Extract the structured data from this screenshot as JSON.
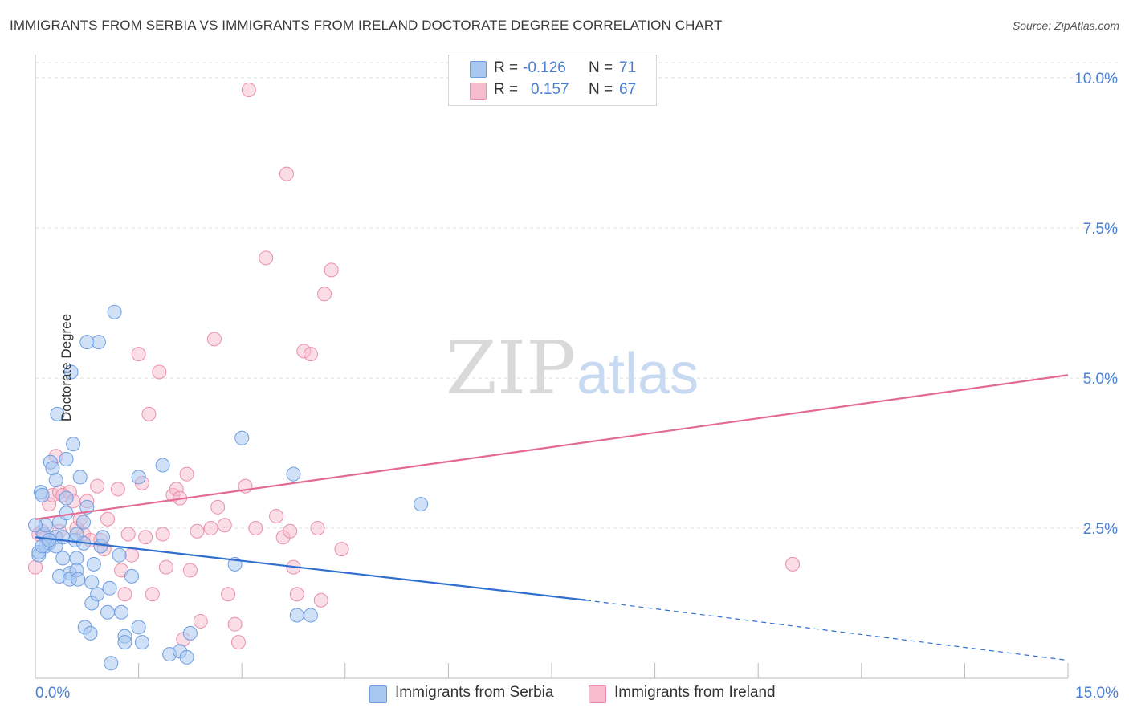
{
  "header": {
    "title": "IMMIGRANTS FROM SERBIA VS IMMIGRANTS FROM IRELAND DOCTORATE DEGREE CORRELATION CHART",
    "source": "Source: ZipAtlas.com"
  },
  "legend": {
    "r_label": "R =",
    "n_label": "N =",
    "serbia": {
      "r": "-0.126",
      "n": "71"
    },
    "ireland": {
      "r": "0.157",
      "n": "67"
    }
  },
  "watermark": {
    "part1": "ZIP",
    "part2": "atlas"
  },
  "colors": {
    "serbia_fill": "#a9c8f0",
    "serbia_stroke": "#6d9de0",
    "serbia_line": "#2f6fce",
    "ireland_fill": "#f7bccd",
    "ireland_stroke": "#ea8fab",
    "ireland_line": "#e26a94",
    "tick_label": "#4a7fd4",
    "grid": "#dcdcdc"
  },
  "chart_data": {
    "type": "scatter",
    "title": "IMMIGRANTS FROM SERBIA VS IMMIGRANTS FROM IRELAND DOCTORATE DEGREE CORRELATION CHART",
    "xlabel": "",
    "ylabel": "Doctorate Degree",
    "xlim": [
      0,
      15
    ],
    "ylim": [
      0,
      10.5
    ],
    "x_tick_labels": [
      "0.0%",
      "15.0%"
    ],
    "y_ticks": [
      2.5,
      5.0,
      7.5,
      10.0
    ],
    "y_tick_labels": [
      "2.5%",
      "5.0%",
      "7.5%",
      "10.0%"
    ],
    "grid": true,
    "legend_position": "bottom",
    "series": [
      {
        "name": "Immigrants from Serbia",
        "r": -0.126,
        "n": 71,
        "trend": {
          "x0": 0,
          "y0": 2.35,
          "x1": 8.0,
          "y1": 1.3,
          "dashed_to_x": 15,
          "dashed_to_y": 0.3
        },
        "points": [
          [
            0.05,
            2.05
          ],
          [
            0.05,
            2.1
          ],
          [
            0.08,
            3.1
          ],
          [
            0.1,
            3.05
          ],
          [
            0.12,
            2.4
          ],
          [
            0.15,
            2.55
          ],
          [
            0.15,
            2.2
          ],
          [
            0.2,
            2.25
          ],
          [
            0.2,
            2.3
          ],
          [
            0.22,
            3.6
          ],
          [
            0.25,
            3.5
          ],
          [
            0.3,
            2.35
          ],
          [
            0.3,
            2.2
          ],
          [
            0.32,
            4.4
          ],
          [
            0.35,
            2.6
          ],
          [
            0.35,
            1.7
          ],
          [
            0.4,
            2.0
          ],
          [
            0.4,
            2.35
          ],
          [
            0.45,
            2.75
          ],
          [
            0.45,
            3.0
          ],
          [
            0.45,
            3.65
          ],
          [
            0.5,
            1.75
          ],
          [
            0.5,
            1.65
          ],
          [
            0.52,
            5.1
          ],
          [
            0.55,
            3.9
          ],
          [
            0.58,
            2.3
          ],
          [
            0.6,
            2.0
          ],
          [
            0.6,
            1.8
          ],
          [
            0.62,
            1.65
          ],
          [
            0.65,
            3.35
          ],
          [
            0.7,
            2.25
          ],
          [
            0.7,
            2.6
          ],
          [
            0.72,
            0.85
          ],
          [
            0.75,
            2.85
          ],
          [
            0.75,
            5.6
          ],
          [
            0.8,
            0.75
          ],
          [
            0.82,
            1.6
          ],
          [
            0.82,
            1.25
          ],
          [
            0.85,
            1.9
          ],
          [
            0.9,
            1.4
          ],
          [
            0.92,
            5.6
          ],
          [
            0.95,
            2.2
          ],
          [
            0.98,
            2.35
          ],
          [
            1.05,
            1.1
          ],
          [
            1.08,
            1.5
          ],
          [
            1.1,
            0.25
          ],
          [
            1.15,
            6.1
          ],
          [
            1.22,
            2.05
          ],
          [
            1.25,
            1.1
          ],
          [
            1.3,
            0.7
          ],
          [
            1.3,
            0.6
          ],
          [
            1.4,
            1.7
          ],
          [
            1.5,
            3.35
          ],
          [
            1.5,
            0.85
          ],
          [
            1.55,
            0.6
          ],
          [
            1.85,
            3.55
          ],
          [
            1.95,
            0.4
          ],
          [
            2.1,
            0.45
          ],
          [
            2.2,
            0.35
          ],
          [
            2.25,
            0.75
          ],
          [
            2.9,
            1.9
          ],
          [
            3.0,
            4.0
          ],
          [
            3.75,
            3.4
          ],
          [
            3.8,
            1.05
          ],
          [
            4.0,
            1.05
          ],
          [
            5.6,
            2.9
          ],
          [
            0.0,
            2.55
          ],
          [
            0.1,
            2.2
          ],
          [
            0.2,
            2.3
          ],
          [
            0.3,
            3.3
          ],
          [
            0.6,
            2.4
          ]
        ]
      },
      {
        "name": "Immigrants from Ireland",
        "r": 0.157,
        "n": 67,
        "trend": {
          "x0": 0,
          "y0": 2.65,
          "x1": 15,
          "y1": 5.05
        },
        "points": [
          [
            0.0,
            1.85
          ],
          [
            0.05,
            2.4
          ],
          [
            0.1,
            2.45
          ],
          [
            0.15,
            2.35
          ],
          [
            0.2,
            2.9
          ],
          [
            0.25,
            3.05
          ],
          [
            0.3,
            3.7
          ],
          [
            0.35,
            3.1
          ],
          [
            0.4,
            3.05
          ],
          [
            0.5,
            3.1
          ],
          [
            0.55,
            2.95
          ],
          [
            0.6,
            2.5
          ],
          [
            0.65,
            2.65
          ],
          [
            0.7,
            2.4
          ],
          [
            0.75,
            2.95
          ],
          [
            0.8,
            2.3
          ],
          [
            0.9,
            3.2
          ],
          [
            0.95,
            2.3
          ],
          [
            1.0,
            2.15
          ],
          [
            1.05,
            2.65
          ],
          [
            1.2,
            3.15
          ],
          [
            1.25,
            1.8
          ],
          [
            1.3,
            1.4
          ],
          [
            1.35,
            2.4
          ],
          [
            1.4,
            2.05
          ],
          [
            1.5,
            5.4
          ],
          [
            1.55,
            3.25
          ],
          [
            1.6,
            2.35
          ],
          [
            1.65,
            4.4
          ],
          [
            1.7,
            1.4
          ],
          [
            1.8,
            5.1
          ],
          [
            1.85,
            2.4
          ],
          [
            1.9,
            1.85
          ],
          [
            2.0,
            3.05
          ],
          [
            2.05,
            3.15
          ],
          [
            2.1,
            3.0
          ],
          [
            2.15,
            0.65
          ],
          [
            2.2,
            3.4
          ],
          [
            2.25,
            1.8
          ],
          [
            2.35,
            2.45
          ],
          [
            2.4,
            0.95
          ],
          [
            2.55,
            2.5
          ],
          [
            2.6,
            5.65
          ],
          [
            2.65,
            2.85
          ],
          [
            2.75,
            2.55
          ],
          [
            2.8,
            1.4
          ],
          [
            2.9,
            0.9
          ],
          [
            2.95,
            0.6
          ],
          [
            3.05,
            3.2
          ],
          [
            3.1,
            9.8
          ],
          [
            3.2,
            2.5
          ],
          [
            3.35,
            7.0
          ],
          [
            3.5,
            2.7
          ],
          [
            3.6,
            2.35
          ],
          [
            3.65,
            8.4
          ],
          [
            3.7,
            2.45
          ],
          [
            3.75,
            1.85
          ],
          [
            3.8,
            1.4
          ],
          [
            3.9,
            5.45
          ],
          [
            4.0,
            5.4
          ],
          [
            4.1,
            2.5
          ],
          [
            4.15,
            1.3
          ],
          [
            4.2,
            6.4
          ],
          [
            4.3,
            6.8
          ],
          [
            4.45,
            2.15
          ],
          [
            11.0,
            1.9
          ],
          [
            0.35,
            2.45
          ]
        ]
      }
    ]
  },
  "bottom_legend": {
    "serbia": "Immigrants from Serbia",
    "ireland": "Immigrants from Ireland"
  }
}
